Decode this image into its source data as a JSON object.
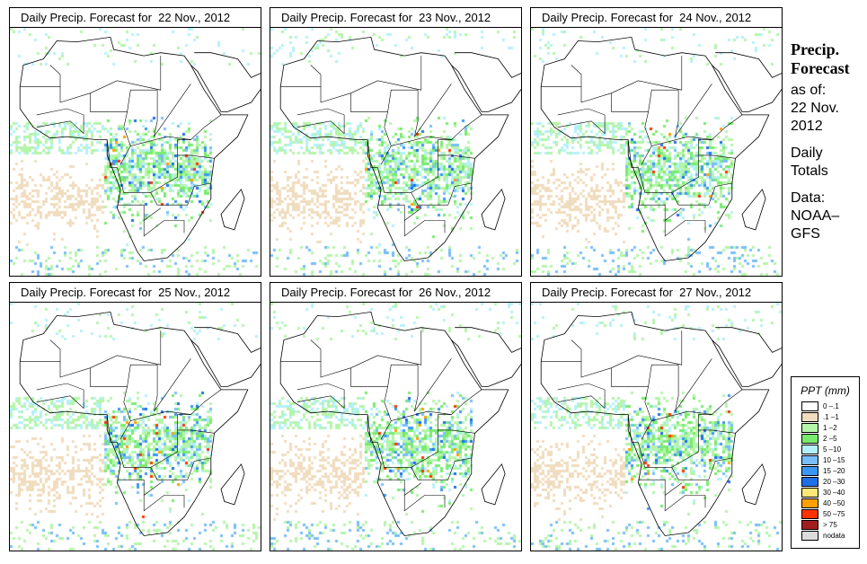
{
  "panels": [
    {
      "title": "Daily Precip. Forecast for  22 Nov., 2012"
    },
    {
      "title": "Daily Precip. Forecast for  23 Nov., 2012"
    },
    {
      "title": "Daily Precip. Forecast for  24 Nov., 2012"
    },
    {
      "title": "Daily Precip. Forecast for  25 Nov., 2012"
    },
    {
      "title": "Daily Precip. Forecast for  26 Nov., 2012"
    },
    {
      "title": "Daily Precip. Forecast for  27 Nov., 2012"
    }
  ],
  "side": {
    "line1": "Precip.",
    "line2": "Forecast",
    "line3": "as of:",
    "line4": "22 Nov.",
    "line5": "2012",
    "line6": "Daily",
    "line7": "Totals",
    "line8": "Data:",
    "line9": "NOAA–",
    "line10": "GFS"
  },
  "legend": {
    "title": "PPT (mm)",
    "items": [
      {
        "label": "0 –.1",
        "color": "#ffffff"
      },
      {
        "label": ".1 –1",
        "color": "#f0dcbe"
      },
      {
        "label": "1 –2",
        "color": "#b4f5aa"
      },
      {
        "label": "2 –5",
        "color": "#78eb6e"
      },
      {
        "label": "5 –10",
        "color": "#b4f0fa"
      },
      {
        "label": "10 –15",
        "color": "#78bef8"
      },
      {
        "label": "15 –20",
        "color": "#3c96f5"
      },
      {
        "label": "20 –30",
        "color": "#1e6ee6"
      },
      {
        "label": "30 –40",
        "color": "#ffe678"
      },
      {
        "label": "40 –50",
        "color": "#ffa000"
      },
      {
        "label": "50 –75",
        "color": "#ff3200"
      },
      {
        "label": "> 75",
        "color": "#a01e1e"
      },
      {
        "label": "nodata",
        "color": "#dcdcdc"
      }
    ]
  }
}
